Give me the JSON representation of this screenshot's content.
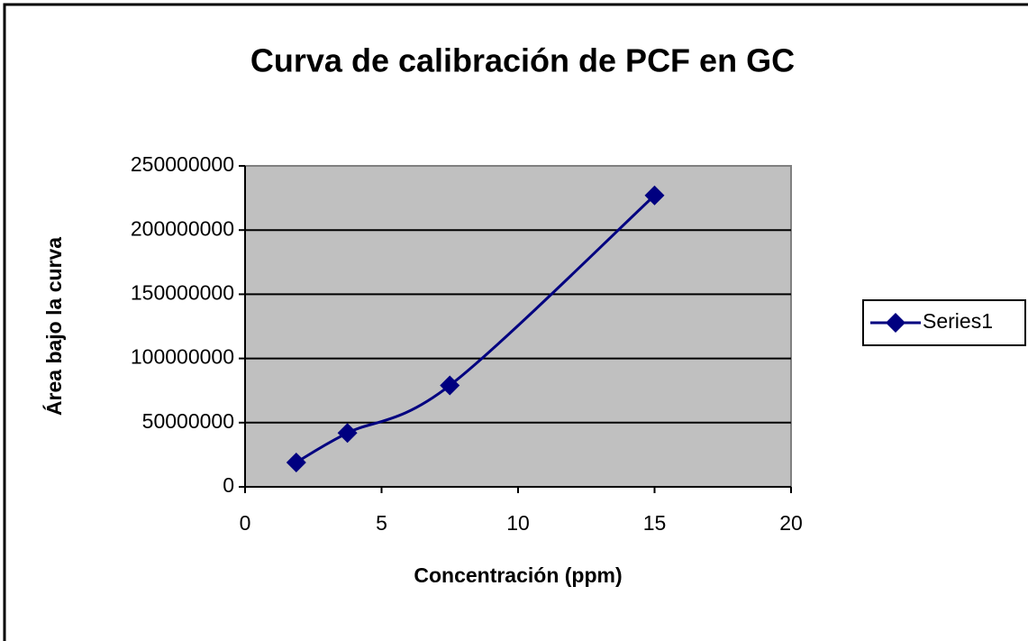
{
  "chart_data": {
    "type": "line",
    "title": "Curva de calibración de PCF en GC",
    "x_label": "Concentración (ppm)",
    "y_label": "Área bajo la curva",
    "x": [
      1.875,
      3.75,
      7.5,
      15
    ],
    "series": [
      {
        "name": "Series1",
        "color": "#000080",
        "values": [
          19000000,
          42000000,
          79000000,
          227000000
        ]
      }
    ],
    "xlim": [
      0,
      20
    ],
    "xticks": [
      0,
      5,
      10,
      15,
      20
    ],
    "ylim": [
      0,
      250000000
    ],
    "yticks": [
      0,
      50000000,
      100000000,
      150000000,
      200000000,
      250000000
    ],
    "grid": true,
    "smooth": true,
    "legend": "right"
  }
}
